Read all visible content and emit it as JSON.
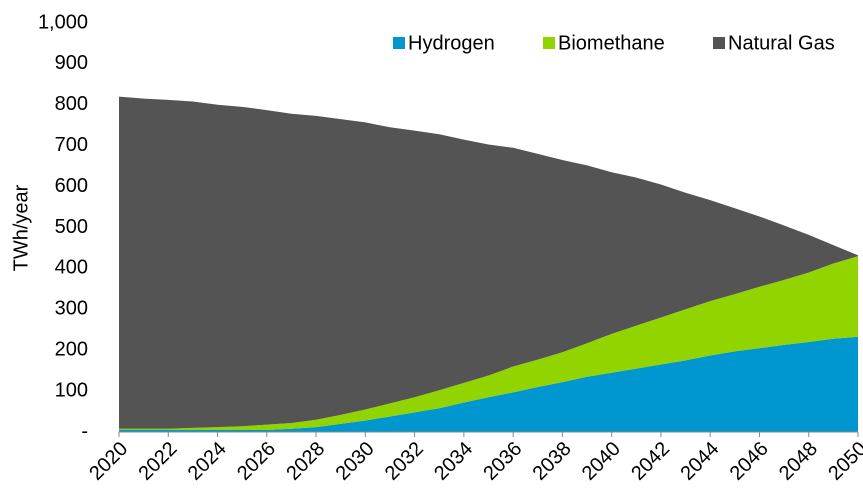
{
  "chart_data": {
    "type": "area",
    "stacked": true,
    "y_label": "TWh/year",
    "x": [
      2020,
      2021,
      2022,
      2023,
      2024,
      2025,
      2026,
      2027,
      2028,
      2029,
      2030,
      2031,
      2032,
      2033,
      2034,
      2035,
      2036,
      2037,
      2038,
      2039,
      2040,
      2041,
      2042,
      2043,
      2044,
      2045,
      2046,
      2047,
      2048,
      2049,
      2050
    ],
    "xlim": [
      2020,
      2050
    ],
    "xticks": [
      2020,
      2022,
      2024,
      2026,
      2028,
      2030,
      2032,
      2034,
      2036,
      2038,
      2040,
      2042,
      2044,
      2046,
      2048,
      2050
    ],
    "ylim": [
      0,
      1000
    ],
    "yticks": [
      {
        "value": 0,
        "label": "-"
      },
      100,
      200,
      300,
      400,
      500,
      600,
      700,
      800,
      900,
      {
        "value": 1000,
        "label": "1,000"
      }
    ],
    "grid": false,
    "legend": "top-right",
    "series": [
      {
        "name": "Hydrogen",
        "color": "#0097d0",
        "values": [
          5,
          5,
          5,
          5,
          5,
          5,
          5,
          8,
          12,
          20,
          28,
          38,
          48,
          58,
          72,
          85,
          97,
          110,
          122,
          135,
          145,
          155,
          165,
          175,
          187,
          197,
          205,
          213,
          220,
          228,
          233
        ]
      },
      {
        "name": "Biomethane",
        "color": "#92d400",
        "values": [
          3,
          3,
          3,
          5,
          7,
          9,
          13,
          14,
          18,
          22,
          27,
          32,
          37,
          44,
          48,
          53,
          63,
          67,
          73,
          82,
          95,
          105,
          115,
          125,
          133,
          140,
          150,
          159,
          170,
          184,
          197
        ]
      },
      {
        "name": "Natural Gas",
        "color": "#545454",
        "values": [
          812,
          807,
          804,
          798,
          788,
          781,
          769,
          756,
          743,
          723,
          702,
          675,
          652,
          626,
          595,
          565,
          535,
          503,
          470,
          435,
          395,
          362,
          325,
          285,
          247,
          210,
          172,
          133,
          92,
          45,
          2
        ]
      }
    ]
  }
}
